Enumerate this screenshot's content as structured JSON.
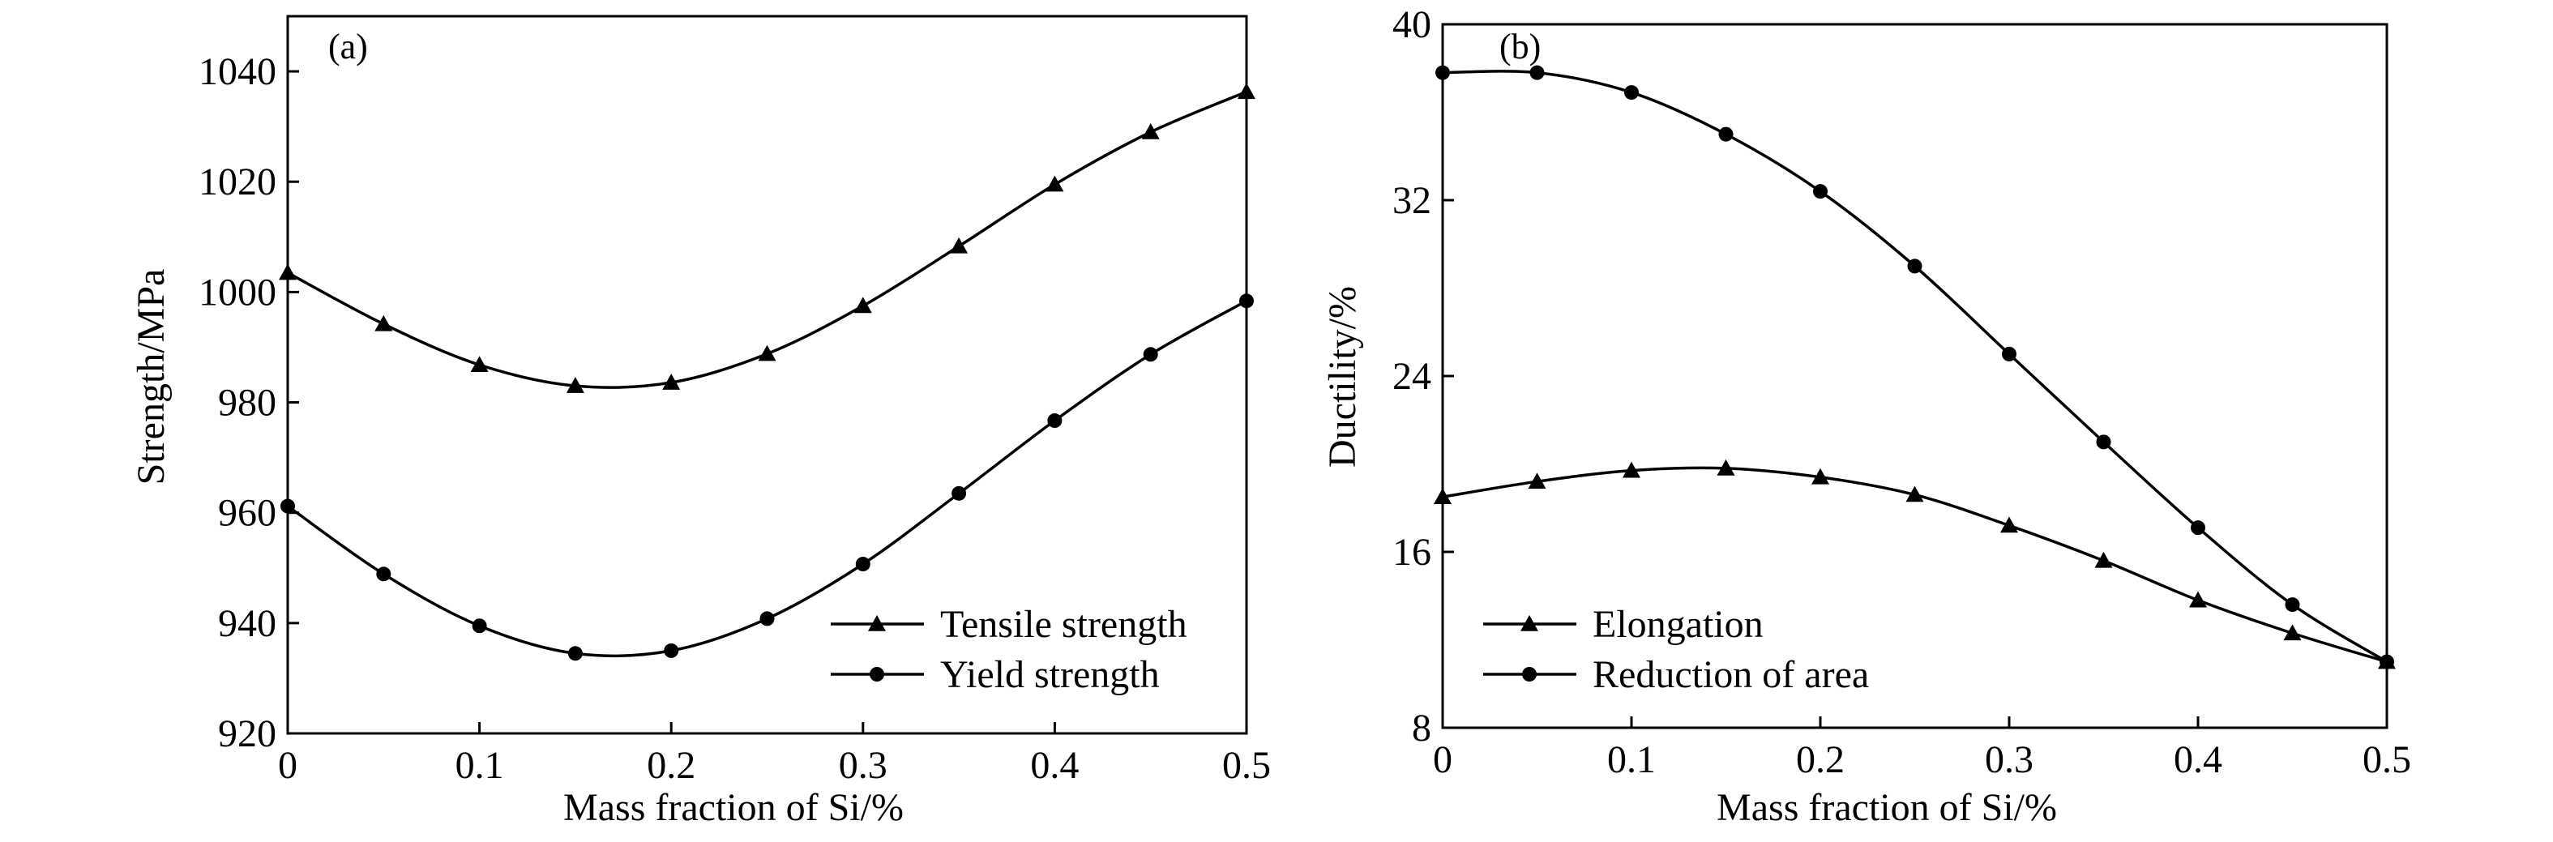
{
  "chart_data": [
    {
      "type": "line",
      "panel_label": "(a)",
      "xlabel": "Mass fraction of Si/%",
      "ylabel": "Strength/MPa",
      "xlim": [
        0,
        0.5
      ],
      "ylim": [
        920,
        1050
      ],
      "xticks": [
        0,
        0.1,
        0.2,
        0.3,
        0.4,
        0.5
      ],
      "xtick_labels": [
        "0",
        "0.1",
        "0.2",
        "0.3",
        "0.4",
        "0.5"
      ],
      "yticks": [
        920,
        940,
        960,
        980,
        1000,
        1020,
        1040
      ],
      "ytick_labels": [
        "920",
        "940",
        "960",
        "980",
        "1000",
        "1020",
        "1040"
      ],
      "grid": false,
      "legend": "bottom-right",
      "x": [
        0,
        0.05,
        0.1,
        0.15,
        0.2,
        0.25,
        0.3,
        0.35,
        0.4,
        0.45,
        0.5
      ],
      "series": [
        {
          "name": "Tensile strength",
          "marker": "triangle",
          "values": [
            1003.5,
            994.2,
            986.8,
            983.0,
            983.6,
            988.8,
            997.5,
            1008.3,
            1019.5,
            1029.0,
            1036.3
          ]
        },
        {
          "name": "Yield strength",
          "marker": "circle",
          "values": [
            961.2,
            948.9,
            939.5,
            934.5,
            935.0,
            940.8,
            950.7,
            963.5,
            976.7,
            988.7,
            998.4
          ]
        }
      ]
    },
    {
      "type": "line",
      "panel_label": "(b)",
      "xlabel": "Mass fraction of Si/%",
      "ylabel": "Ductility/%",
      "xlim": [
        0,
        0.5
      ],
      "ylim": [
        8,
        40
      ],
      "xticks": [
        0,
        0.1,
        0.2,
        0.3,
        0.4,
        0.5
      ],
      "xtick_labels": [
        "0",
        "0.1",
        "0.2",
        "0.3",
        "0.4",
        "0.5"
      ],
      "yticks": [
        8,
        16,
        24,
        32,
        40
      ],
      "ytick_labels": [
        "8",
        "16",
        "24",
        "32",
        "40"
      ],
      "grid": false,
      "legend": "bottom-left",
      "x": [
        0,
        0.05,
        0.1,
        0.15,
        0.2,
        0.25,
        0.3,
        0.35,
        0.4,
        0.45,
        0.5
      ],
      "series": [
        {
          "name": "Elongation",
          "marker": "triangle",
          "values": [
            18.5,
            19.2,
            19.7,
            19.8,
            19.4,
            18.6,
            17.2,
            15.6,
            13.8,
            12.3,
            11.0
          ]
        },
        {
          "name": "Reduction of area",
          "marker": "circle",
          "values": [
            37.8,
            37.8,
            36.9,
            35.0,
            32.4,
            29.0,
            25.0,
            21.0,
            17.1,
            13.6,
            11.0
          ]
        }
      ]
    }
  ]
}
